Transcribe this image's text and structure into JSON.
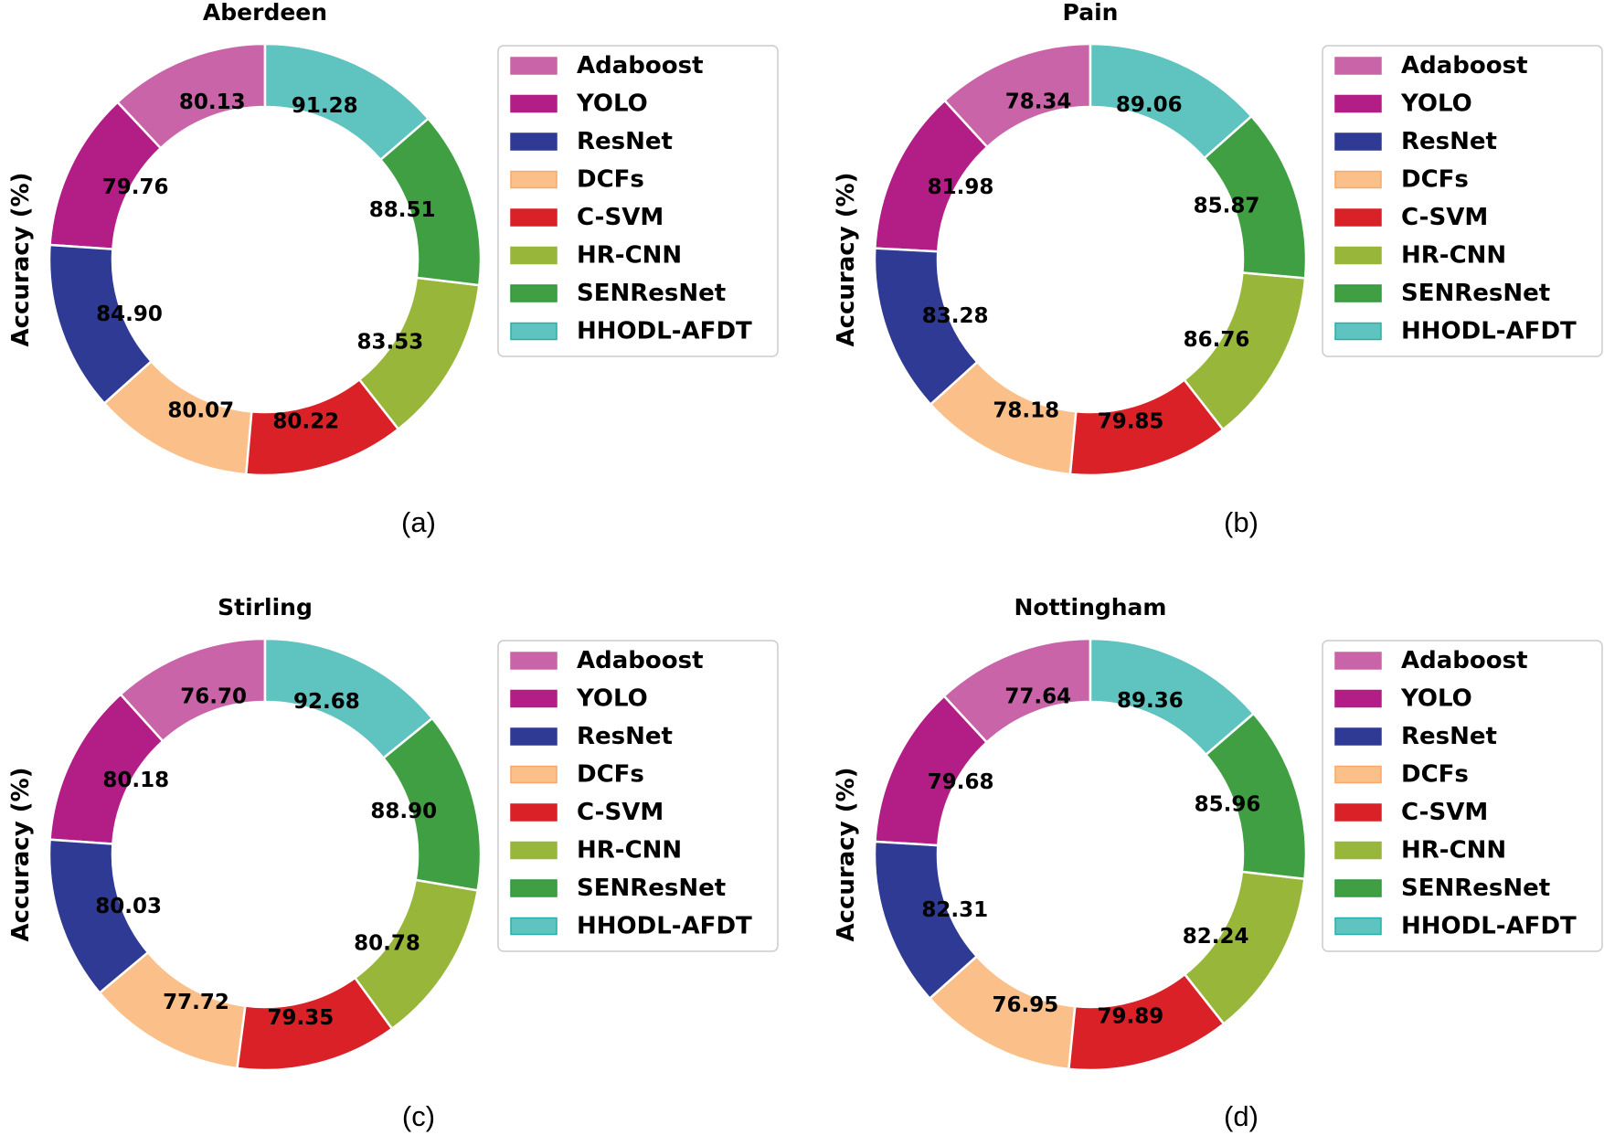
{
  "chart_data": [
    {
      "type": "pie",
      "style": "donut",
      "title": "Aberdeen",
      "ylabel": "Accuracy (%)",
      "caption": "(a)",
      "categories": [
        "Adaboost",
        "YOLO",
        "ResNet",
        "DCFs",
        "C-SVM",
        "HR-CNN",
        "SENResNet",
        "HHODL-AFDT"
      ],
      "values": [
        80.13,
        79.76,
        84.9,
        80.07,
        80.22,
        83.53,
        88.51,
        91.28
      ],
      "value_labels": [
        "80.13",
        "79.76",
        "84.90",
        "80.07",
        "80.22",
        "83.53",
        "88.51",
        "91.28"
      ],
      "legend": "right"
    },
    {
      "type": "pie",
      "style": "donut",
      "title": "Pain",
      "ylabel": "Accuracy (%)",
      "caption": "(b)",
      "categories": [
        "Adaboost",
        "YOLO",
        "ResNet",
        "DCFs",
        "C-SVM",
        "HR-CNN",
        "SENResNet",
        "HHODL-AFDT"
      ],
      "values": [
        78.34,
        81.98,
        83.28,
        78.18,
        79.85,
        86.76,
        85.87,
        89.06
      ],
      "value_labels": [
        "78.34",
        "81.98",
        "83.28",
        "78.18",
        "79.85",
        "86.76",
        "85.87",
        "89.06"
      ],
      "legend": "right"
    },
    {
      "type": "pie",
      "style": "donut",
      "title": "Stirling",
      "ylabel": "Accuracy (%)",
      "caption": "(c)",
      "categories": [
        "Adaboost",
        "YOLO",
        "ResNet",
        "DCFs",
        "C-SVM",
        "HR-CNN",
        "SENResNet",
        "HHODL-AFDT"
      ],
      "values": [
        76.7,
        80.18,
        80.03,
        77.72,
        79.35,
        80.78,
        88.9,
        92.68
      ],
      "value_labels": [
        "76.70",
        "80.18",
        "80.03",
        "77.72",
        "79.35",
        "80.78",
        "88.90",
        "92.68"
      ],
      "legend": "right"
    },
    {
      "type": "pie",
      "style": "donut",
      "title": "Nottingham",
      "ylabel": "Accuracy (%)",
      "caption": "(d)",
      "categories": [
        "Adaboost",
        "YOLO",
        "ResNet",
        "DCFs",
        "C-SVM",
        "HR-CNN",
        "SENResNet",
        "HHODL-AFDT"
      ],
      "values": [
        77.64,
        79.68,
        82.31,
        76.95,
        79.89,
        82.24,
        85.96,
        89.36
      ],
      "value_labels": [
        "77.64",
        "79.68",
        "82.31",
        "76.95",
        "79.89",
        "82.24",
        "85.96",
        "89.36"
      ],
      "legend": "right"
    }
  ],
  "colors": {
    "Adaboost": "#c964a8",
    "YOLO": "#b31e86",
    "ResNet": "#2e3a94",
    "DCFs": "#fbbf89",
    "C-SVM": "#d92127",
    "HR-CNN": "#98b73a",
    "SENResNet": "#3f9f42",
    "HHODL-AFDT": "#5fc3c0"
  },
  "colors_stroke": {
    "Adaboost": "#c964a8",
    "YOLO": "#b31e86",
    "ResNet": "#2e3a94",
    "DCFs": "#f6a96b",
    "C-SVM": "#d92127",
    "HR-CNN": "#98b73a",
    "SENResNet": "#2f9a3e",
    "HHODL-AFDT": "#26b0ac"
  }
}
